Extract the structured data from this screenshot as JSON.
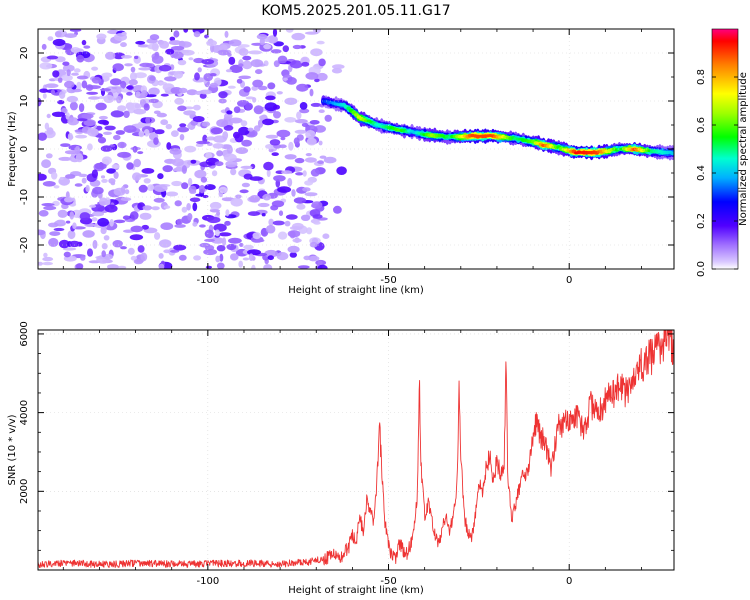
{
  "title": "KOM5.2025.201.05.11.G17",
  "chart_data": [
    {
      "type": "heatmap",
      "xlabel": "Height of straight line (km)",
      "ylabel": "Frequency (Hz)",
      "xlim": [
        -147,
        29
      ],
      "ylim": [
        -25,
        25
      ],
      "xticks": [
        -100,
        -50,
        0
      ],
      "yticks": [
        -20,
        -10,
        0,
        10,
        20
      ],
      "colorbar": {
        "label": "Normalized spectral amplitude",
        "range": [
          0,
          1
        ],
        "ticks": [
          0.0,
          0.2,
          0.4,
          0.6,
          0.8
        ]
      },
      "noise_region": {
        "x": [
          -147,
          -68
        ],
        "y": [
          -25,
          25
        ],
        "typical_amplitude": 0.1
      },
      "signal_ridge": [
        {
          "x": -68,
          "freq": 10,
          "amp": 0.3
        },
        {
          "x": -62,
          "freq": 9,
          "amp": 0.45
        },
        {
          "x": -58,
          "freq": 6.5,
          "amp": 0.7
        },
        {
          "x": -53,
          "freq": 5,
          "amp": 0.45
        },
        {
          "x": -47,
          "freq": 4,
          "amp": 0.6
        },
        {
          "x": -43,
          "freq": 3.5,
          "amp": 0.4
        },
        {
          "x": -38,
          "freq": 2.8,
          "amp": 0.65
        },
        {
          "x": -33,
          "freq": 2.5,
          "amp": 0.5
        },
        {
          "x": -27,
          "freq": 2.7,
          "amp": 0.9
        },
        {
          "x": -21,
          "freq": 2.7,
          "amp": 0.9
        },
        {
          "x": -15,
          "freq": 2.2,
          "amp": 0.5
        },
        {
          "x": -10,
          "freq": 1.5,
          "amp": 0.6
        },
        {
          "x": -7,
          "freq": 0.8,
          "amp": 0.9
        },
        {
          "x": -3,
          "freq": 0.3,
          "amp": 0.55
        },
        {
          "x": 2,
          "freq": -0.7,
          "amp": 0.95
        },
        {
          "x": 8,
          "freq": -0.7,
          "amp": 0.9
        },
        {
          "x": 14,
          "freq": 0,
          "amp": 0.5
        },
        {
          "x": 18,
          "freq": 0,
          "amp": 0.9
        },
        {
          "x": 23,
          "freq": -0.5,
          "amp": 0.5
        },
        {
          "x": 29,
          "freq": -0.8,
          "amp": 0.4
        }
      ]
    },
    {
      "type": "line",
      "xlabel": "Height of straight line (km)",
      "ylabel": "SNR (10 * v/v)",
      "xlim": [
        -147,
        29
      ],
      "ylim": [
        0,
        6100
      ],
      "xticks": [
        -100,
        -50,
        0
      ],
      "yticks": [
        2000,
        4000,
        6000
      ],
      "color": "#ee3333",
      "x": [
        -147,
        -140,
        -130,
        -120,
        -110,
        -100,
        -90,
        -80,
        -72,
        -68,
        -65,
        -63,
        -61,
        -60,
        -59,
        -58,
        -57,
        -56,
        -55,
        -54,
        -53,
        -52.5,
        -52,
        -51,
        -50,
        -49,
        -48,
        -47,
        -46,
        -45,
        -44,
        -43,
        -42,
        -41.5,
        -41,
        -40,
        -39,
        -38,
        -37,
        -36,
        -35,
        -34,
        -33,
        -32,
        -31,
        -30.5,
        -30,
        -29,
        -28,
        -27,
        -26,
        -25,
        -24,
        -23,
        -22,
        -21,
        -20,
        -19,
        -18,
        -17.5,
        -17,
        -16,
        -15,
        -14,
        -13,
        -12,
        -11,
        -10,
        -9,
        -8,
        -7,
        -6,
        -5,
        -4,
        -3,
        -2,
        -1,
        0,
        2,
        4,
        6,
        8,
        10,
        12,
        14,
        16,
        18,
        20,
        22,
        24,
        26,
        27,
        28,
        29
      ],
      "y": [
        150,
        180,
        140,
        170,
        150,
        160,
        170,
        160,
        200,
        300,
        400,
        350,
        600,
        900,
        700,
        1300,
        1000,
        1800,
        1500,
        1200,
        2600,
        3650,
        2800,
        1200,
        600,
        350,
        300,
        700,
        500,
        400,
        600,
        900,
        2000,
        4900,
        2600,
        1400,
        1700,
        1300,
        800,
        700,
        1200,
        1300,
        1000,
        1400,
        2200,
        4850,
        2900,
        1300,
        1000,
        800,
        1400,
        2200,
        2000,
        2600,
        2900,
        2200,
        2800,
        2400,
        2600,
        5250,
        2500,
        1300,
        1600,
        2000,
        2400,
        2500,
        2700,
        3300,
        3900,
        3400,
        3300,
        3000,
        2600,
        3100,
        3700,
        3600,
        3800,
        3700,
        4000,
        3500,
        4200,
        3900,
        4300,
        4500,
        4700,
        4500,
        4900,
        5200,
        5400,
        5500,
        5700,
        6000,
        5900,
        5600
      ]
    }
  ]
}
